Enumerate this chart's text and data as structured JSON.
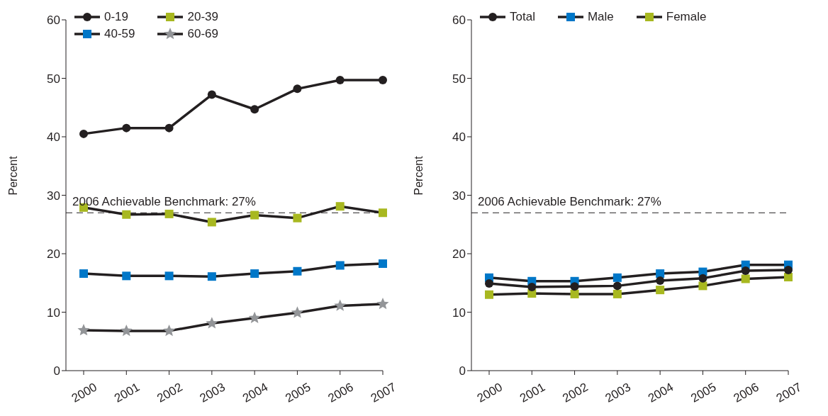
{
  "chart_data": [
    {
      "type": "line",
      "ylabel": "Percent",
      "categories": [
        "2000",
        "2001",
        "2002",
        "2003",
        "2004",
        "2005",
        "2006",
        "2007"
      ],
      "ylim": [
        0,
        60
      ],
      "yticks": [
        0,
        10,
        20,
        30,
        40,
        50,
        60
      ],
      "grid": false,
      "legend": "top left",
      "series": [
        {
          "name": "0-19",
          "color": "#231f20",
          "marker": "circle",
          "values": [
            40.5,
            41.5,
            41.5,
            47.2,
            44.7,
            48.2,
            49.7,
            49.7
          ]
        },
        {
          "name": "20-39",
          "color": "#a8b820",
          "marker": "square",
          "values": [
            27.9,
            26.7,
            26.8,
            25.4,
            26.6,
            26.1,
            28.1,
            27.0
          ]
        },
        {
          "name": "40-59",
          "color": "#0077c8",
          "marker": "square",
          "values": [
            16.6,
            16.2,
            16.2,
            16.1,
            16.6,
            17.0,
            18.0,
            18.3
          ]
        },
        {
          "name": "60-69",
          "color": "#939598",
          "marker": "star",
          "values": [
            6.9,
            6.8,
            6.8,
            8.1,
            9.0,
            9.9,
            11.1,
            11.4
          ]
        }
      ],
      "ref_lines": [
        {
          "axis": "y",
          "value": 27,
          "label": "2006 Achievable Benchmark: 27%",
          "color": "#231f20",
          "line_style": "dashed"
        }
      ]
    },
    {
      "type": "line",
      "ylabel": "Percent",
      "categories": [
        "2000",
        "2001",
        "2002",
        "2003",
        "2004",
        "2005",
        "2006",
        "2007"
      ],
      "ylim": [
        0,
        60
      ],
      "yticks": [
        0,
        10,
        20,
        30,
        40,
        50,
        60
      ],
      "grid": false,
      "legend": "top left",
      "series": [
        {
          "name": "Total",
          "color": "#231f20",
          "marker": "circle",
          "values": [
            14.9,
            14.3,
            14.4,
            14.5,
            15.4,
            15.8,
            17.1,
            17.2
          ]
        },
        {
          "name": "Male",
          "color": "#0077c8",
          "marker": "square",
          "values": [
            15.9,
            15.3,
            15.3,
            15.9,
            16.6,
            16.9,
            18.1,
            18.1
          ]
        },
        {
          "name": "Female",
          "color": "#a8b820",
          "marker": "square",
          "values": [
            13.0,
            13.2,
            13.1,
            13.1,
            13.8,
            14.5,
            15.7,
            16.0
          ]
        }
      ],
      "ref_lines": [
        {
          "axis": "y",
          "value": 27,
          "label": "2006 Achievable Benchmark: 27%",
          "color": "#231f20",
          "line_style": "dashed"
        }
      ]
    }
  ]
}
